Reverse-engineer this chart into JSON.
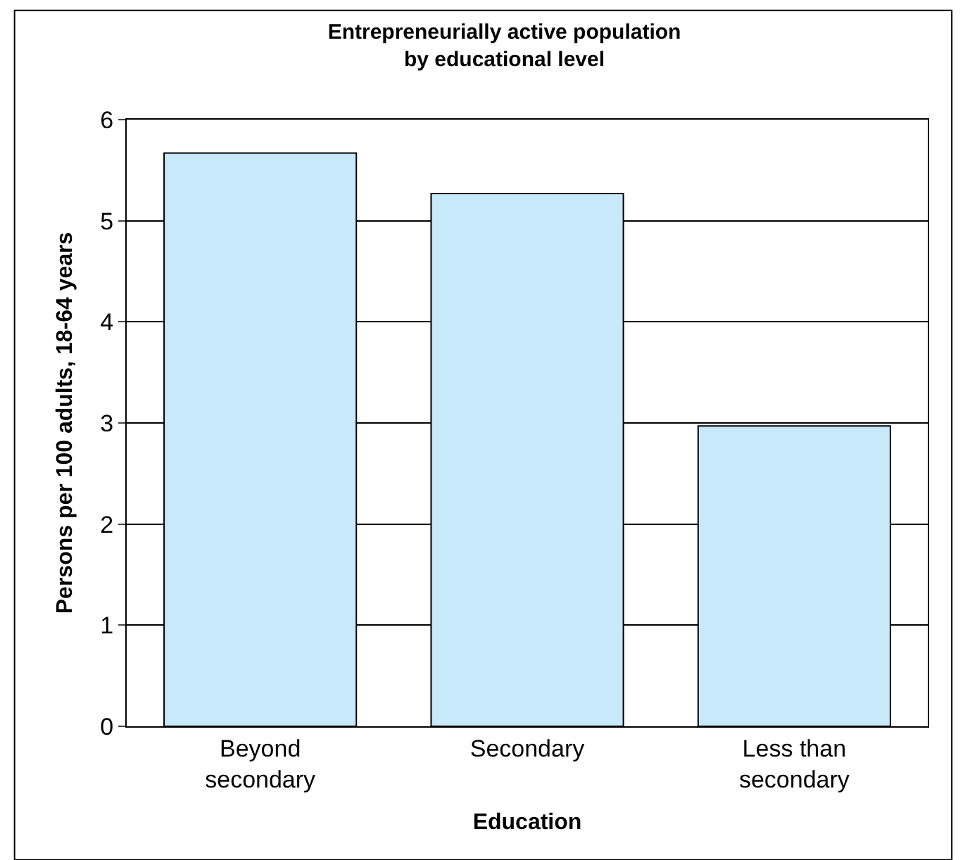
{
  "chart_data": {
    "type": "bar",
    "title": "Entrepreneurially active population\nby educational level",
    "xlabel": "Education",
    "ylabel": "Persons per 100 adults, 18-64 years",
    "categories": [
      "Beyond\nsecondary",
      "Secondary",
      "Less than\nsecondary"
    ],
    "values": [
      5.67,
      5.27,
      2.97
    ],
    "color": "#c7e9f9",
    "ylim": [
      0,
      6
    ],
    "yticks": [
      0,
      1,
      2,
      3,
      4,
      5,
      6
    ],
    "grid": "y"
  }
}
